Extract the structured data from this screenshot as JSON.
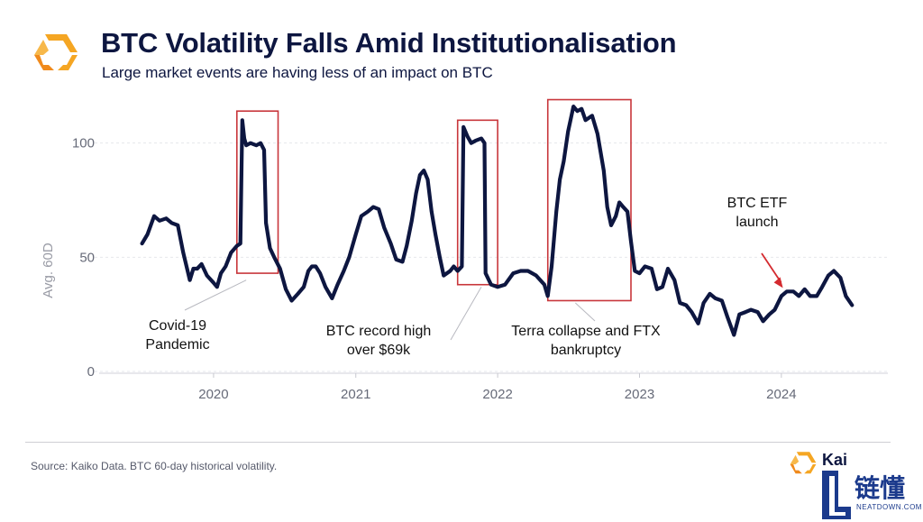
{
  "header": {
    "title": "BTC Volatility Falls Amid Institutionalisation",
    "subtitle": "Large market events are having less of an impact on BTC"
  },
  "footer": {
    "source": "Source: Kaiko Data. BTC 60-day historical volatility.",
    "brand": "Kaiko",
    "watermark_main": "链懂",
    "watermark_sub": "NEATDOWN.COM"
  },
  "colors": {
    "line": "#0d1640",
    "box": "#c8363b",
    "accent_orange": "#f5a623",
    "arrow": "#d42a2f"
  },
  "chart_data": {
    "type": "line",
    "title": "BTC Volatility Falls Amid Institutionalisation",
    "ylabel": "Avg. 60D",
    "xlabel": "",
    "ylim": [
      0,
      120
    ],
    "xlim": [
      "2019-03-01",
      "2024-10-01"
    ],
    "yticks": [
      0,
      50,
      100
    ],
    "xticks": [
      "2020",
      "2021",
      "2022",
      "2023",
      "2024"
    ],
    "grid": true,
    "series": [
      {
        "points": [
          [
            "2019-07-01",
            56
          ],
          [
            "2019-07-15",
            60
          ],
          [
            "2019-08-01",
            68
          ],
          [
            "2019-08-15",
            66
          ],
          [
            "2019-09-01",
            67
          ],
          [
            "2019-09-15",
            65
          ],
          [
            "2019-10-01",
            64
          ],
          [
            "2019-10-15",
            52
          ],
          [
            "2019-11-01",
            40
          ],
          [
            "2019-11-10",
            45
          ],
          [
            "2019-11-20",
            45
          ],
          [
            "2019-12-01",
            47
          ],
          [
            "2019-12-15",
            42
          ],
          [
            "2019-12-31",
            39
          ],
          [
            "2020-01-10",
            37
          ],
          [
            "2020-01-20",
            43
          ],
          [
            "2020-02-01",
            46
          ],
          [
            "2020-02-15",
            52
          ],
          [
            "2020-03-01",
            55
          ],
          [
            "2020-03-10",
            56
          ],
          [
            "2020-03-15",
            110
          ],
          [
            "2020-03-20",
            102
          ],
          [
            "2020-03-25",
            99
          ],
          [
            "2020-04-05",
            100
          ],
          [
            "2020-04-20",
            99
          ],
          [
            "2020-05-01",
            100
          ],
          [
            "2020-05-10",
            97
          ],
          [
            "2020-05-15",
            65
          ],
          [
            "2020-05-25",
            54
          ],
          [
            "2020-06-05",
            50
          ],
          [
            "2020-06-20",
            45
          ],
          [
            "2020-07-05",
            36
          ],
          [
            "2020-07-20",
            31
          ],
          [
            "2020-08-05",
            34
          ],
          [
            "2020-08-20",
            37
          ],
          [
            "2020-09-01",
            44
          ],
          [
            "2020-09-10",
            46
          ],
          [
            "2020-09-20",
            46
          ],
          [
            "2020-10-01",
            43
          ],
          [
            "2020-10-15",
            37
          ],
          [
            "2020-11-01",
            32
          ],
          [
            "2020-11-15",
            38
          ],
          [
            "2020-12-01",
            44
          ],
          [
            "2020-12-15",
            50
          ],
          [
            "2021-01-01",
            60
          ],
          [
            "2021-01-15",
            68
          ],
          [
            "2021-02-01",
            70
          ],
          [
            "2021-02-15",
            72
          ],
          [
            "2021-03-01",
            71
          ],
          [
            "2021-03-15",
            63
          ],
          [
            "2021-04-01",
            56
          ],
          [
            "2021-04-15",
            49
          ],
          [
            "2021-05-01",
            48
          ],
          [
            "2021-05-12",
            55
          ],
          [
            "2021-05-25",
            66
          ],
          [
            "2021-06-05",
            78
          ],
          [
            "2021-06-15",
            86
          ],
          [
            "2021-06-25",
            88
          ],
          [
            "2021-07-05",
            84
          ],
          [
            "2021-07-15",
            70
          ],
          [
            "2021-07-25",
            60
          ],
          [
            "2021-08-05",
            50
          ],
          [
            "2021-08-15",
            42
          ],
          [
            "2021-09-01",
            44
          ],
          [
            "2021-09-10",
            46
          ],
          [
            "2021-09-20",
            44
          ],
          [
            "2021-10-01",
            46
          ],
          [
            "2021-10-05",
            107
          ],
          [
            "2021-10-15",
            103
          ],
          [
            "2021-10-25",
            100
          ],
          [
            "2021-11-05",
            101
          ],
          [
            "2021-11-20",
            102
          ],
          [
            "2021-11-28",
            100
          ],
          [
            "2021-12-01",
            43
          ],
          [
            "2021-12-15",
            38
          ],
          [
            "2022-01-01",
            37
          ],
          [
            "2022-01-20",
            38
          ],
          [
            "2022-02-10",
            43
          ],
          [
            "2022-03-01",
            44
          ],
          [
            "2022-03-20",
            44
          ],
          [
            "2022-04-10",
            42
          ],
          [
            "2022-05-01",
            38
          ],
          [
            "2022-05-10",
            33
          ],
          [
            "2022-05-20",
            46
          ],
          [
            "2022-06-01",
            70
          ],
          [
            "2022-06-10",
            84
          ],
          [
            "2022-06-20",
            92
          ],
          [
            "2022-07-01",
            105
          ],
          [
            "2022-07-15",
            116
          ],
          [
            "2022-07-25",
            114
          ],
          [
            "2022-08-05",
            115
          ],
          [
            "2022-08-15",
            110
          ],
          [
            "2022-09-01",
            112
          ],
          [
            "2022-09-15",
            104
          ],
          [
            "2022-10-01",
            88
          ],
          [
            "2022-10-10",
            72
          ],
          [
            "2022-10-20",
            64
          ],
          [
            "2022-11-01",
            68
          ],
          [
            "2022-11-10",
            74
          ],
          [
            "2022-11-20",
            72
          ],
          [
            "2022-12-01",
            70
          ],
          [
            "2022-12-10",
            57
          ],
          [
            "2022-12-20",
            44
          ],
          [
            "2023-01-01",
            43
          ],
          [
            "2023-01-15",
            46
          ],
          [
            "2023-02-01",
            45
          ],
          [
            "2023-02-15",
            36
          ],
          [
            "2023-03-01",
            37
          ],
          [
            "2023-03-15",
            45
          ],
          [
            "2023-04-01",
            40
          ],
          [
            "2023-04-15",
            30
          ],
          [
            "2023-05-01",
            29
          ],
          [
            "2023-05-15",
            26
          ],
          [
            "2023-06-01",
            21
          ],
          [
            "2023-06-15",
            30
          ],
          [
            "2023-07-01",
            34
          ],
          [
            "2023-07-15",
            32
          ],
          [
            "2023-08-01",
            31
          ],
          [
            "2023-08-15",
            24
          ],
          [
            "2023-09-01",
            16
          ],
          [
            "2023-09-15",
            25
          ],
          [
            "2023-10-01",
            26
          ],
          [
            "2023-10-15",
            27
          ],
          [
            "2023-11-01",
            26
          ],
          [
            "2023-11-15",
            22
          ],
          [
            "2023-12-01",
            25
          ],
          [
            "2023-12-15",
            27
          ],
          [
            "2024-01-01",
            33
          ],
          [
            "2024-01-15",
            35
          ],
          [
            "2024-02-01",
            35
          ],
          [
            "2024-02-15",
            33
          ],
          [
            "2024-03-01",
            36
          ],
          [
            "2024-03-15",
            33
          ],
          [
            "2024-04-01",
            33
          ],
          [
            "2024-04-15",
            37
          ],
          [
            "2024-05-01",
            42
          ],
          [
            "2024-05-15",
            44
          ],
          [
            "2024-06-01",
            41
          ],
          [
            "2024-06-15",
            33
          ],
          [
            "2024-07-01",
            29
          ]
        ]
      }
    ],
    "highlight_boxes": [
      {
        "x0": "2020-03-01",
        "x1": "2020-06-15",
        "y0": 43,
        "y1": 114
      },
      {
        "x0": "2021-09-20",
        "x1": "2022-01-01",
        "y0": 38,
        "y1": 110
      },
      {
        "x0": "2022-05-10",
        "x1": "2022-12-10",
        "y0": 31,
        "y1": 119
      }
    ],
    "annotations": [
      {
        "text": [
          "Covid-19",
          "Pandemic"
        ],
        "target": [
          "2020-03-25",
          40
        ]
      },
      {
        "text": [
          "BTC record high",
          "over $69k"
        ],
        "target": [
          "2021-11-20",
          37
        ]
      },
      {
        "text": [
          "Terra collapse and FTX",
          "bankruptcy"
        ],
        "target": [
          "2022-07-20",
          30
        ]
      },
      {
        "text": [
          "BTC ETF",
          "launch"
        ],
        "target": [
          "2024-01-05",
          35
        ]
      }
    ]
  }
}
